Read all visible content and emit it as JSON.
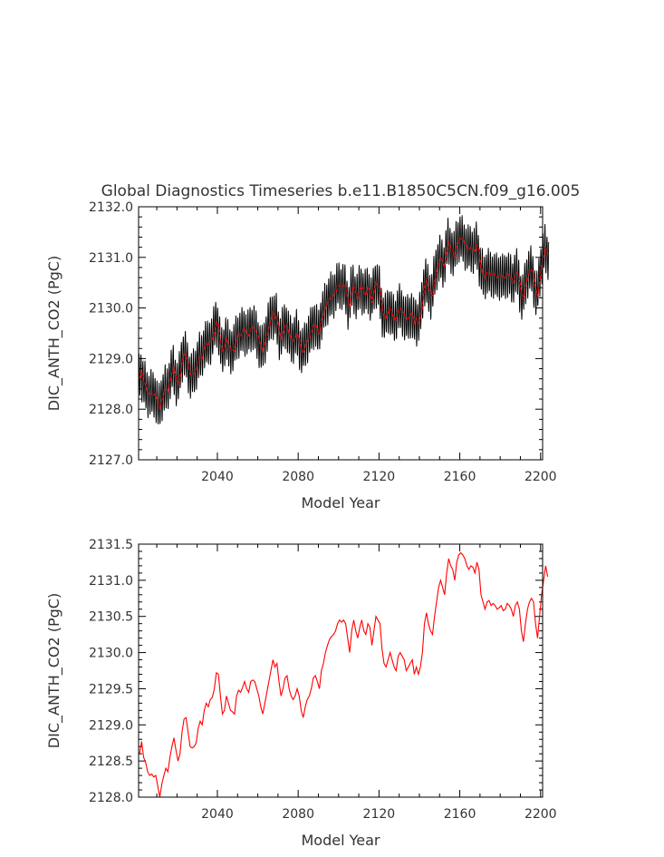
{
  "title": "Global Diagnostics Timeseries b.e11.B1850C5CN.f09_g16.005",
  "chart_data": [
    {
      "type": "line",
      "panel": "top",
      "xlabel": "Model Year",
      "ylabel": "DIC_ANTH_CO2 (PgC)",
      "xlim": [
        2001,
        2201
      ],
      "ylim": [
        2127.0,
        2132.0
      ],
      "xticks": [
        "2040",
        "2080",
        "2120",
        "2160",
        "2200"
      ],
      "yticks": [
        "2127.0",
        "2128.0",
        "2129.0",
        "2130.0",
        "2131.0",
        "2132.0"
      ],
      "series": [
        {
          "name": "monthly",
          "color": "#000000",
          "note": "monthly values oscillating roughly ±0.45 PgC around the annual mean"
        },
        {
          "name": "annual_mean",
          "color": "#ff0000",
          "x_start": 2001,
          "x_step": 1,
          "values": [
            2128.6,
            2128.77,
            2128.55,
            2128.48,
            2128.35,
            2128.3,
            2128.32,
            2128.28,
            2128.3,
            2128.15,
            2128.0,
            2128.18,
            2128.3,
            2128.4,
            2128.35,
            2128.55,
            2128.7,
            2128.82,
            2128.65,
            2128.5,
            2128.6,
            2128.9,
            2129.08,
            2129.1,
            2128.9,
            2128.7,
            2128.68,
            2128.7,
            2128.75,
            2128.95,
            2129.05,
            2129.0,
            2129.2,
            2129.3,
            2129.25,
            2129.35,
            2129.38,
            2129.5,
            2129.72,
            2129.7,
            2129.4,
            2129.15,
            2129.2,
            2129.4,
            2129.3,
            2129.2,
            2129.18,
            2129.15,
            2129.4,
            2129.48,
            2129.45,
            2129.52,
            2129.6,
            2129.5,
            2129.45,
            2129.6,
            2129.62,
            2129.6,
            2129.5,
            2129.4,
            2129.25,
            2129.15,
            2129.3,
            2129.45,
            2129.6,
            2129.75,
            2129.9,
            2129.8,
            2129.85,
            2129.6,
            2129.4,
            2129.5,
            2129.65,
            2129.68,
            2129.5,
            2129.4,
            2129.35,
            2129.4,
            2129.5,
            2129.4,
            2129.2,
            2129.1,
            2129.25,
            2129.35,
            2129.4,
            2129.5,
            2129.65,
            2129.68,
            2129.6,
            2129.5,
            2129.75,
            2129.85,
            2130.0,
            2130.1,
            2130.18,
            2130.22,
            2130.25,
            2130.3,
            2130.4,
            2130.45,
            2130.42,
            2130.45,
            2130.4,
            2130.2,
            2130.0,
            2130.3,
            2130.45,
            2130.3,
            2130.2,
            2130.35,
            2130.45,
            2130.3,
            2130.25,
            2130.4,
            2130.35,
            2130.1,
            2130.3,
            2130.5,
            2130.45,
            2130.4,
            2130.05,
            2129.85,
            2129.8,
            2129.9,
            2130.0,
            2129.9,
            2129.8,
            2129.75,
            2129.95,
            2130.0,
            2129.95,
            2129.9,
            2129.75,
            2129.8,
            2129.85,
            2129.9,
            2129.7,
            2129.8,
            2129.7,
            2129.8,
            2130.0,
            2130.4,
            2130.55,
            2130.4,
            2130.3,
            2130.25,
            2130.5,
            2130.7,
            2130.9,
            2131.0,
            2130.9,
            2130.8,
            2131.1,
            2131.3,
            2131.2,
            2131.15,
            2131.0,
            2131.25,
            2131.35,
            2131.38,
            2131.35,
            2131.3,
            2131.2,
            2131.15,
            2131.2,
            2131.18,
            2131.1,
            2131.25,
            2131.15,
            2130.8,
            2130.7,
            2130.6,
            2130.7,
            2130.72,
            2130.65,
            2130.68,
            2130.65,
            2130.6,
            2130.62,
            2130.65,
            2130.58,
            2130.6,
            2130.68,
            2130.65,
            2130.6,
            2130.5,
            2130.65,
            2130.7,
            2130.6,
            2130.3,
            2130.15,
            2130.4,
            2130.6,
            2130.7,
            2130.75,
            2130.7,
            2130.4,
            2130.2,
            2130.5,
            2130.8,
            2131.0,
            2131.2,
            2131.05
          ]
        }
      ]
    },
    {
      "type": "line",
      "panel": "bottom",
      "xlabel": "Model Year",
      "ylabel": "DIC_ANTH_CO2 (PgC)",
      "xlim": [
        2001,
        2201
      ],
      "ylim": [
        2128.0,
        2131.5
      ],
      "xticks": [
        "2040",
        "2080",
        "2120",
        "2160",
        "2200"
      ],
      "yticks": [
        "2128.0",
        "2128.5",
        "2129.0",
        "2129.5",
        "2130.0",
        "2130.5",
        "2131.0",
        "2131.5"
      ],
      "series": [
        {
          "name": "annual_mean",
          "color": "#ff0000",
          "same_as": "top.annual_mean"
        }
      ]
    }
  ]
}
